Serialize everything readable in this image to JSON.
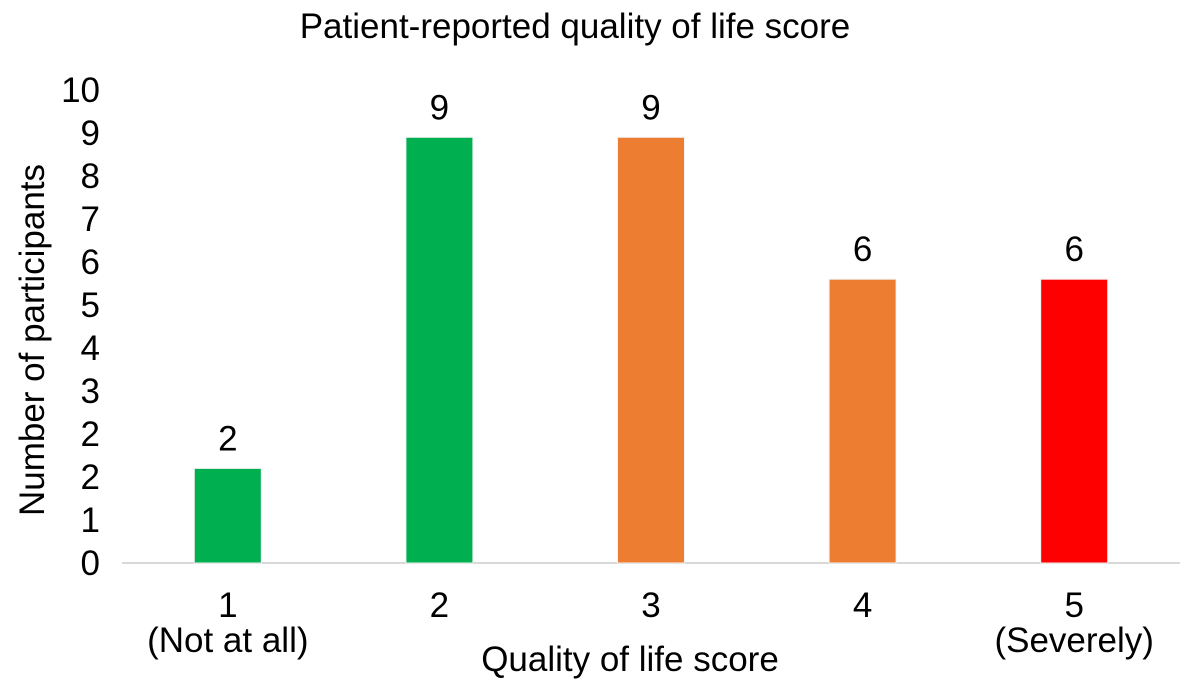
{
  "chart_data": {
    "type": "bar",
    "title": "Patient-reported quality of life score",
    "xlabel": "Quality of life score",
    "ylabel": "Number of participants",
    "categories": [
      "1",
      "2",
      "3",
      "4",
      "5"
    ],
    "category_sublabels": [
      "(Not at all)",
      "",
      "",
      "",
      "(Severely)"
    ],
    "values": [
      2,
      9,
      9,
      6,
      6
    ],
    "bar_colors": [
      "#00b050",
      "#00b050",
      "#ed7d31",
      "#ed7d31",
      "#ff0000"
    ],
    "yticks": [
      "0",
      "1",
      "2",
      "2",
      "3",
      "4",
      "5",
      "6",
      "7",
      "8",
      "9",
      "10"
    ],
    "ylim": [
      0,
      10
    ],
    "grid": false,
    "legend": "none",
    "data_labels": true
  }
}
